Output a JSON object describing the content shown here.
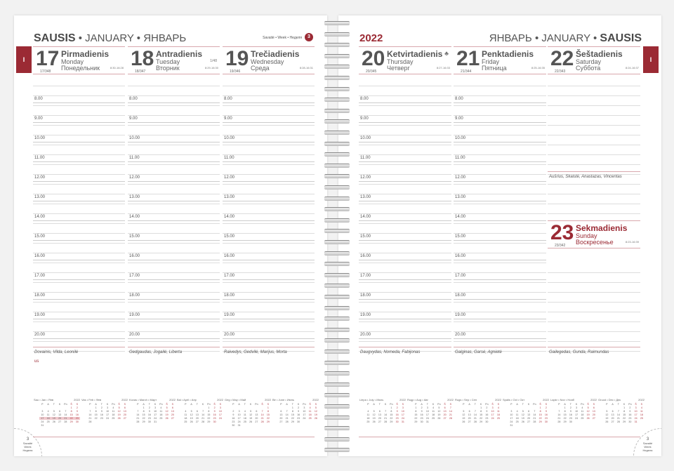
{
  "left": {
    "title_main": "SAUSIS",
    "title_rest": " • JANUARY • ЯНВАРЬ",
    "week_label": "Savaitė • Week • Неделя",
    "week_number": "3",
    "tab": "I",
    "days": [
      {
        "num": "17",
        "lt": "Pirmadienis",
        "en": "Monday",
        "ru": "Понедельник",
        "doy": "17/348",
        "sun": "8:30-16:28",
        "names": "Dovainis, Vilda, Leonilė",
        "note": "us"
      },
      {
        "num": "18",
        "lt": "Antradienis",
        "en": "Tuesday",
        "ru": "Вторник",
        "doy": "18/347",
        "sun": "8:29-16:30",
        "moon": "1/48",
        "names": "Gedgaudas, Jogailė, Liberta"
      },
      {
        "num": "19",
        "lt": "Trečiadienis",
        "en": "Wednesday",
        "ru": "Среда",
        "doy": "19/346",
        "sun": "8:28-16:31",
        "names": "Raivedys, Gedvilė, Marijus, Morta"
      }
    ],
    "corner": {
      "num": "3",
      "lt": "Savaitė",
      "en": "Week",
      "ru": "Неделя"
    }
  },
  "right": {
    "year": "2022",
    "title_rest": "ЯНВАРЬ • JANUARY • ",
    "title_main": "SAUSIS",
    "tab": "I",
    "days": [
      {
        "num": "20",
        "lt": "Ketvirtadienis",
        "en": "Thursday",
        "ru": "Четверг",
        "doy": "20/345",
        "sun": "8:27-16:33",
        "icon": "tree-icon",
        "names": "Daugvydas, Nomeda, Fabijonas"
      },
      {
        "num": "21",
        "lt": "Penktadienis",
        "en": "Friday",
        "ru": "Пятница",
        "doy": "21/344",
        "sun": "8:25-16:35",
        "names": "Galginas, Garsė, Agnietė"
      },
      {
        "num": "22",
        "lt": "Šeštadienis",
        "en": "Saturday",
        "ru": "Суббота",
        "doy": "22/343",
        "sun": "8:24-16:37",
        "names": "Aušrius, Skaistė, Anastazas, Vincentas"
      }
    ],
    "sunday": {
      "num": "23",
      "lt": "Sekmadienis",
      "en": "Sunday",
      "ru": "Воскресенье",
      "doy": "23/342",
      "sun": "8:23-16:39",
      "names": "Gailegedas, Gunda, Raimundas"
    },
    "corner": {
      "num": "3",
      "lt": "Savaitė",
      "en": "Week",
      "ru": "Неделя"
    }
  },
  "times": [
    "8.00",
    "9.00",
    "10.00",
    "11.00",
    "12.00",
    "13.00",
    "14.00",
    "15.00",
    "16.00",
    "17.00",
    "18.00",
    "19.00",
    "20.00"
  ],
  "mini_calendar": {
    "year": "2022",
    "weekday_rows": [
      "P",
      "A",
      "T",
      "K",
      "Pn",
      "Š",
      "S"
    ],
    "highlight_week": [
      17,
      23
    ],
    "accent": "#9b2a34",
    "months": [
      {
        "title": "Sau • Jan • Янв",
        "start": 5,
        "days": 31
      },
      {
        "title": "Vas • Feb • Фев",
        "start": 1,
        "days": 28
      },
      {
        "title": "Kovas • March • Март",
        "start": 1,
        "days": 31
      },
      {
        "title": "Bal • April • Апр",
        "start": 4,
        "days": 30
      },
      {
        "title": "Geg • May • Май",
        "start": 6,
        "days": 31
      },
      {
        "title": "Bir • June • Июнь",
        "start": 2,
        "days": 30
      },
      {
        "title": "Liepa • July • Июль",
        "start": 4,
        "days": 31
      },
      {
        "title": "Rugp • Aug • Авг",
        "start": 0,
        "days": 31
      },
      {
        "title": "Rugs • Sep • Сен",
        "start": 3,
        "days": 30
      },
      {
        "title": "Spalis • Oct • Окт",
        "start": 5,
        "days": 31
      },
      {
        "title": "Lapkr • Nov • Нояб",
        "start": 1,
        "days": 30
      },
      {
        "title": "Gruod • Dec • Дек",
        "start": 3,
        "days": 31
      }
    ]
  }
}
